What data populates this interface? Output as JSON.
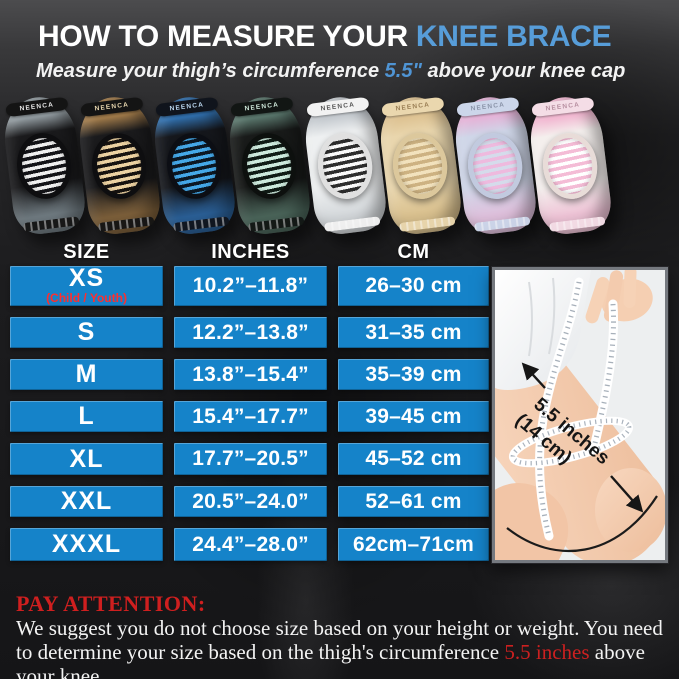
{
  "brand": "NEENCA",
  "header": {
    "title_white": "HOW TO MEASURE YOUR ",
    "title_blue": "KNEE BRACE",
    "subtitle_pre": "Measure your thigh’s circumference ",
    "subtitle_highlight": "5.5\"",
    "subtitle_post": " above your knee cap"
  },
  "braces": [
    {
      "label": "gray-black",
      "accentTop": "#8e979c",
      "accentBottom": "#6f7a80",
      "body": "#1b1b1d",
      "band": "#141414",
      "bandText": "#e8e8e8",
      "padA": "#f0f0f0",
      "padB": "#141418",
      "frame": "#0e0e10"
    },
    {
      "label": "brown-black",
      "accentTop": "#9c7748",
      "accentBottom": "#7c5f3a",
      "body": "#1b1b1d",
      "band": "#141414",
      "bandText": "#e8d7b0",
      "padA": "#ecd2a2",
      "padB": "#171310",
      "frame": "#0e0e10"
    },
    {
      "label": "blue-black",
      "accentTop": "#2f6ca8",
      "accentBottom": "#2a5f96",
      "body": "#16181d",
      "band": "#10141c",
      "bandText": "#bcd8f0",
      "padA": "#45a8e8",
      "padB": "#0c1824",
      "frame": "#0c0e14"
    },
    {
      "label": "green-black",
      "accentTop": "#58746a",
      "accentBottom": "#4a6459",
      "body": "#191b1a",
      "band": "#121614",
      "bandText": "#cfe8da",
      "padA": "#cdeadd",
      "padB": "#101c16",
      "frame": "#0d100e"
    },
    {
      "label": "white",
      "accentTop": "#c6cbd0",
      "accentBottom": "#d4d8db",
      "body": "#eef0f1",
      "band": "#f2f2f2",
      "bandText": "#555555",
      "padA": "#fafafa",
      "padB": "#2e2e2e",
      "frame": "#e0e0e0"
    },
    {
      "label": "beige",
      "accentTop": "#dec393",
      "accentBottom": "#d9c08e",
      "body": "#e9d6ad",
      "band": "#ead7ae",
      "bandText": "#9a7f55",
      "padA": "#f2e2bd",
      "padB": "#cdb282",
      "frame": "#dcc89c"
    },
    {
      "label": "lavender-pink",
      "accentTop": "#e4b4d8",
      "accentBottom": "#dfc0dc",
      "body": "#cfd6e8",
      "band": "#ccd6ea",
      "bandText": "#8a93a8",
      "padA": "#eebade",
      "padB": "#d5dbeb",
      "frame": "#c2cadf"
    },
    {
      "label": "pink-white",
      "accentTop": "#f2b9d2",
      "accentBottom": "#eec3d6",
      "body": "#f4efed",
      "band": "#f4dde6",
      "bandText": "#b78fa0",
      "padA": "#f4bcd6",
      "padB": "#ffffff",
      "frame": "#e8dcd8"
    }
  ],
  "size_table": {
    "columns": [
      "SIZE",
      "INCHES",
      "CM"
    ],
    "rows": [
      {
        "size": "XS",
        "note": "(Child / Youth)",
        "inches": "10.2”–11.8”",
        "cm": "26–30 cm"
      },
      {
        "size": "S",
        "inches": "12.2”–13.8”",
        "cm": "31–35 cm"
      },
      {
        "size": "M",
        "inches": "13.8”–15.4”",
        "cm": "35–39 cm"
      },
      {
        "size": "L",
        "inches": "15.4”–17.7”",
        "cm": "39–45 cm"
      },
      {
        "size": "XL",
        "inches": "17.7”–20.5”",
        "cm": "45–52 cm"
      },
      {
        "size": "XXL",
        "inches": "20.5”–24.0”",
        "cm": "52–61 cm"
      },
      {
        "size": "XXXL",
        "inches": "24.4”–28.0”",
        "cm": "62cm–71cm"
      }
    ]
  },
  "photo": {
    "annotation_line1": "5.5 inches",
    "annotation_line2": "(14 cm)"
  },
  "footer": {
    "attention_label": "PAY ATTENTION:",
    "text_pre": "We suggest you do not choose size based on your height or weight. You need to determine your size based on the thigh's circumference ",
    "text_highlight": "5.5 inches",
    "text_post": " above your knee."
  },
  "colors": {
    "table_blue": "#1583c9",
    "title_blue": "#579dd9",
    "alert_red": "#cf1f1f"
  }
}
